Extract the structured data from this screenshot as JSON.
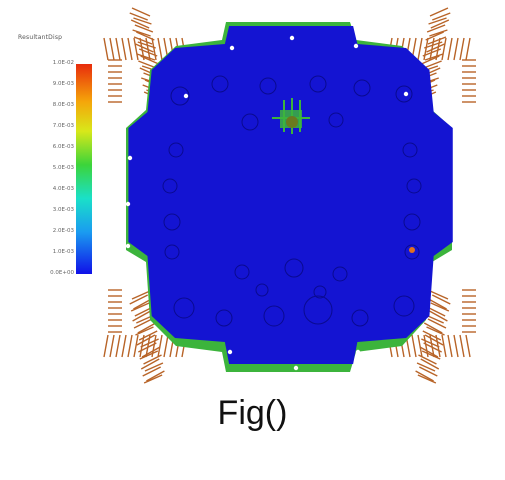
{
  "figure": {
    "caption": "Fig()",
    "legend": {
      "title": "ResultantDisp",
      "ticks": [
        "1.0E-02",
        "9.0E-03",
        "8.0E-03",
        "7.0E-03",
        "6.0E-03",
        "5.0E-03",
        "4.0E-03",
        "3.0E-03",
        "2.0E-03",
        "1.0E-03",
        "0.0E+00"
      ]
    },
    "colors": {
      "plate": "#1414d2",
      "ring": "#3cb43c",
      "spring": "#b86428",
      "background": "#ffffff"
    }
  }
}
